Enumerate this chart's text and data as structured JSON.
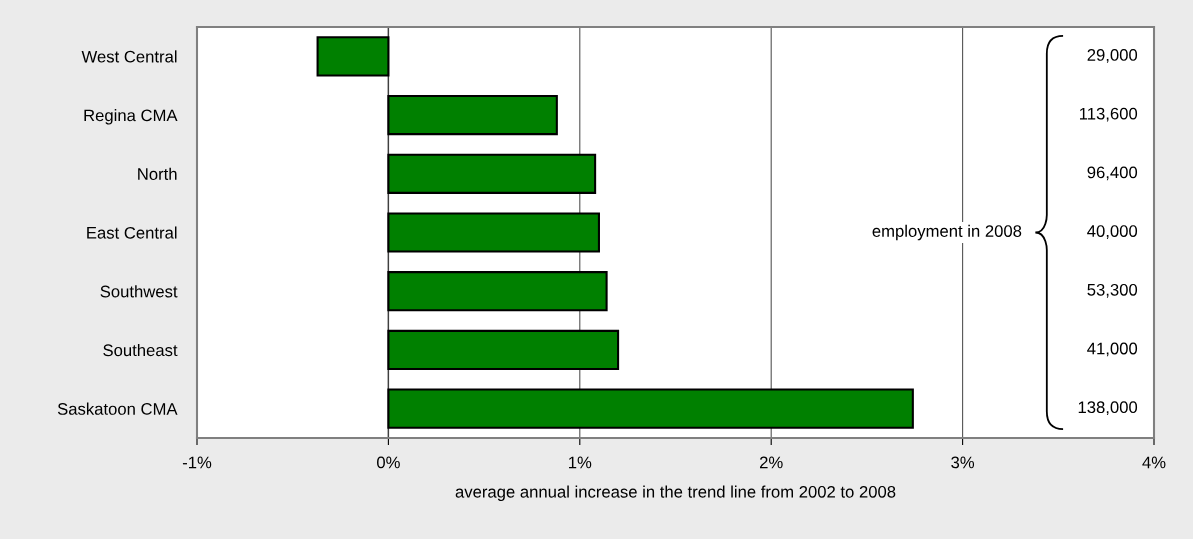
{
  "chart_data": {
    "type": "bar",
    "orientation": "horizontal",
    "xlabel": "average annual increase in the trend line from 2002 to 2008",
    "categories": [
      "West Central",
      "Regina CMA",
      "North",
      "East Central",
      "Southwest",
      "Southeast",
      "Saskatoon CMA"
    ],
    "values": [
      -0.37,
      0.88,
      1.08,
      1.1,
      1.14,
      1.2,
      2.74
    ],
    "color": "#008000",
    "xlim": [
      -1,
      4
    ],
    "xticks": [
      {
        "value": -1,
        "label": "-1%"
      },
      {
        "value": 0,
        "label": "0%"
      },
      {
        "value": 1,
        "label": "1%"
      },
      {
        "value": 2,
        "label": "2%"
      },
      {
        "value": 3,
        "label": "3%"
      },
      {
        "value": 4,
        "label": "4%"
      }
    ],
    "grid": "x",
    "annotations": [
      "employment in 2008",
      "29,000",
      "113,600",
      "96,400",
      "40,000",
      "53,300",
      "41,000",
      "138,000"
    ]
  }
}
